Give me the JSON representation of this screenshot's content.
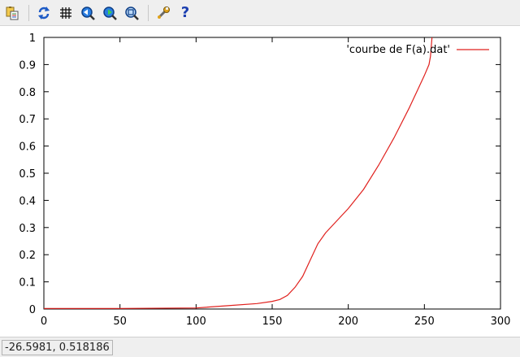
{
  "toolbar": {
    "buttons": [
      {
        "icon": "copy-to-clipboard-icon"
      },
      {
        "icon": "replot-icon"
      },
      {
        "icon": "grid-icon"
      },
      {
        "icon": "zoom-previous-icon"
      },
      {
        "icon": "zoom-next-icon"
      },
      {
        "icon": "autoscale-icon"
      },
      {
        "icon": "settings-wrench-icon"
      },
      {
        "icon": "help-icon",
        "glyph": "?"
      }
    ]
  },
  "chart_data": {
    "type": "line",
    "xlim": [
      0,
      300
    ],
    "ylim": [
      0,
      1
    ],
    "xticks": [
      0,
      50,
      100,
      150,
      200,
      250,
      300
    ],
    "yticks": [
      0,
      0.1,
      0.2,
      0.3,
      0.4,
      0.5,
      0.6,
      0.7,
      0.8,
      0.9,
      1
    ],
    "xtick_labels": [
      "0",
      "50",
      "100",
      "150",
      "200",
      "250",
      "300"
    ],
    "ytick_labels": [
      "0",
      "0.1",
      "0.2",
      "0.3",
      "0.4",
      "0.5",
      "0.6",
      "0.7",
      "0.8",
      "0.9",
      "1"
    ],
    "grid": false,
    "legend": "top-right",
    "series": [
      {
        "name": "'courbe de F(a).dat'",
        "color": "#e0211e",
        "x": [
          0,
          50,
          100,
          120,
          140,
          150,
          155,
          160,
          165,
          170,
          175,
          180,
          185,
          190,
          200,
          210,
          220,
          230,
          240,
          245,
          250,
          253,
          254,
          255
        ],
        "y": [
          0.002,
          0.002,
          0.004,
          0.012,
          0.02,
          0.028,
          0.035,
          0.05,
          0.08,
          0.12,
          0.18,
          0.24,
          0.28,
          0.31,
          0.37,
          0.44,
          0.53,
          0.63,
          0.74,
          0.8,
          0.86,
          0.9,
          0.93,
          1.0
        ]
      }
    ]
  },
  "status": {
    "coordinates": "-26.5981,  0.518186"
  }
}
